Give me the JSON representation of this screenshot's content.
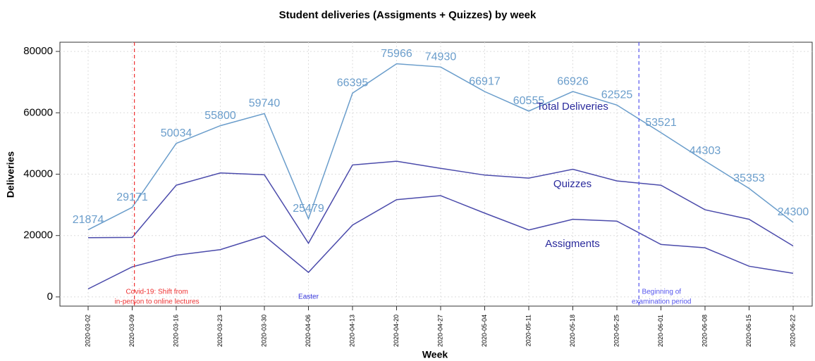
{
  "chart_data": {
    "type": "line",
    "title": "Student deliveries (Assigments + Quizzes) by week",
    "x_label": "Week",
    "y_label": "Deliveries",
    "categories": [
      "2020-03-02",
      "2020-03-09",
      "2020-03-16",
      "2020-03-23",
      "2020-03-30",
      "2020-04-06",
      "2020-04-13",
      "2020-04-20",
      "2020-04-27",
      "2020-05-04",
      "2020-05-11",
      "2020-05-18",
      "2020-05-25",
      "2020-06-01",
      "2020-06-08",
      "2020-06-15",
      "2020-06-22"
    ],
    "series": [
      {
        "name": "Total Deliveries",
        "color": "#6a9dcb",
        "show_values": true,
        "values": [
          21874,
          29171,
          50034,
          55800,
          59740,
          25479,
          66395,
          75966,
          74930,
          66917,
          60555,
          66926,
          62525,
          53521,
          44303,
          35353,
          24300
        ]
      },
      {
        "name": "Quizzes",
        "color": "#4b4bab",
        "show_values": false,
        "values": [
          19300,
          19400,
          36400,
          40400,
          39800,
          17500,
          43000,
          44200,
          41900,
          39700,
          38700,
          41600,
          37800,
          36400,
          28400,
          25300,
          16600
        ]
      },
      {
        "name": "Assigments",
        "color": "#4b4bab",
        "show_values": false,
        "values": [
          2600,
          9800,
          13600,
          15400,
          19900,
          8000,
          23400,
          31700,
          33000,
          27300,
          21800,
          25300,
          24700,
          17100,
          16000,
          10000,
          7700
        ]
      }
    ],
    "ylim": [
      -3000,
      83000
    ],
    "yticks": [
      0,
      20000,
      40000,
      60000,
      80000
    ],
    "grid": true,
    "vlines": [
      {
        "x": 1.05,
        "color": "#ee3333",
        "label": [
          "Covid-19: Shift from",
          "in-person to online lectures"
        ]
      },
      {
        "x": 12.5,
        "color": "#5555ee",
        "label": [
          "Beginning of",
          "examination period"
        ]
      }
    ],
    "annotations": [
      {
        "x": 5,
        "color": "#3333dd",
        "label": [
          "Easter"
        ]
      }
    ]
  }
}
